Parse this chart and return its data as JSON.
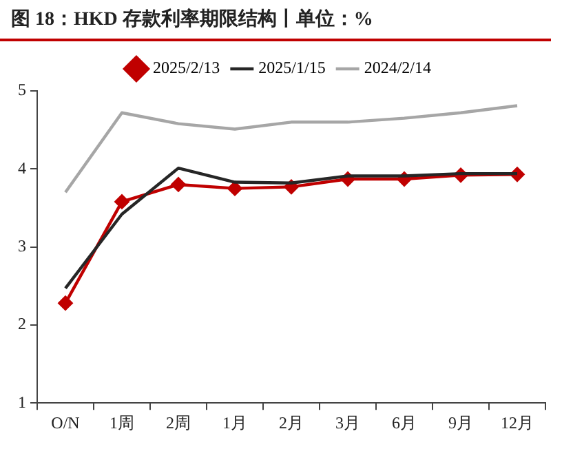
{
  "chart_data": {
    "type": "line",
    "title": "图 18：HKD 存款利率期限结构丨单位：%",
    "categories": [
      "O/N",
      "1周",
      "2周",
      "1月",
      "2月",
      "3月",
      "6月",
      "9月",
      "12月"
    ],
    "series": [
      {
        "name": "2025/2/13",
        "color": "#c00000",
        "marker": "diamond",
        "values": [
          2.28,
          3.58,
          3.8,
          3.75,
          3.77,
          3.87,
          3.87,
          3.92,
          3.93
        ]
      },
      {
        "name": "2025/1/15",
        "color": "#262626",
        "marker": "none",
        "values": [
          2.47,
          3.42,
          4.01,
          3.83,
          3.82,
          3.91,
          3.91,
          3.94,
          3.94
        ]
      },
      {
        "name": "2024/2/14",
        "color": "#a6a6a6",
        "marker": "none",
        "values": [
          3.7,
          4.72,
          4.58,
          4.51,
          4.6,
          4.6,
          4.65,
          4.72,
          4.81
        ]
      }
    ],
    "ylim": [
      1,
      5
    ],
    "yticks": [
      1,
      2,
      3,
      4,
      5
    ],
    "grid": false,
    "legend": "top"
  }
}
